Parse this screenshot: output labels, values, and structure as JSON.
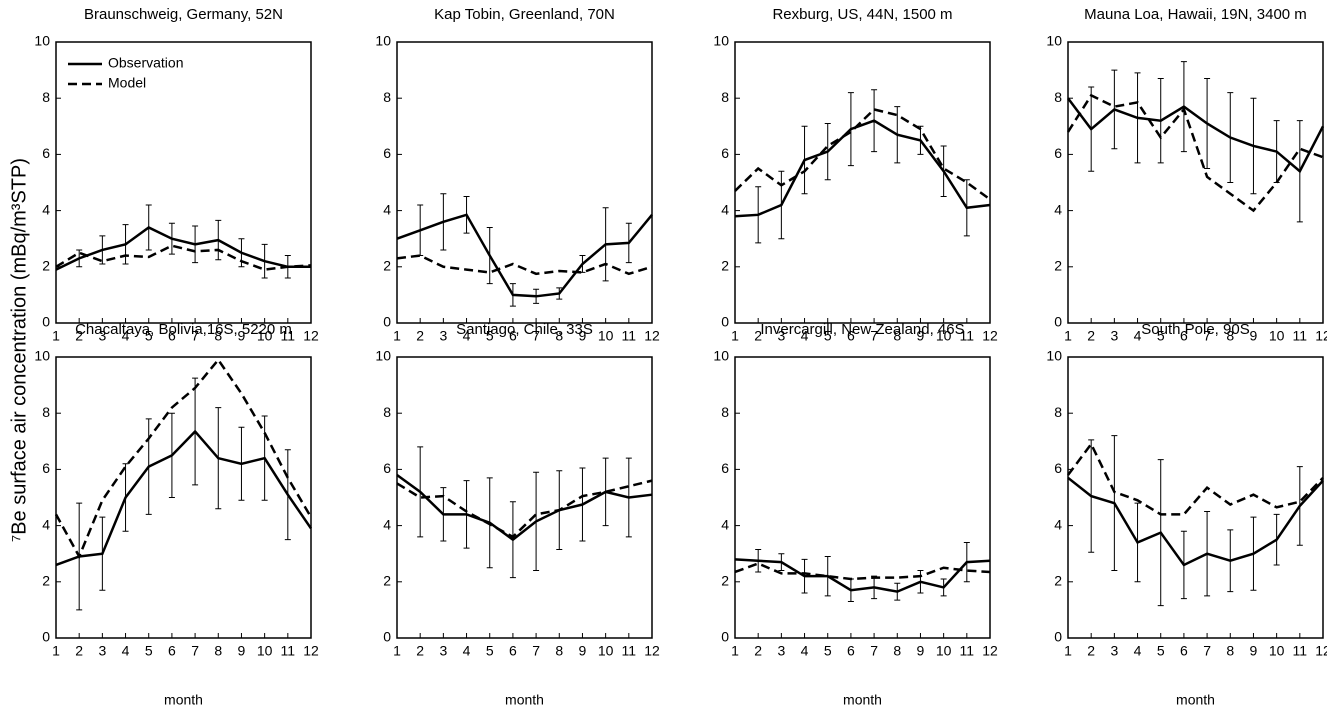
{
  "ylabel": "⁷Be surface air concentration (mBq/m³STP)",
  "chart_data": [
    {
      "type": "line",
      "title": "Braunschweig, Germany, 52N",
      "legend": "upper left",
      "x": [
        1,
        2,
        3,
        4,
        5,
        6,
        7,
        8,
        9,
        10,
        11,
        12
      ],
      "xlim": [
        1,
        12
      ],
      "xticks": [
        1,
        2,
        3,
        4,
        5,
        6,
        7,
        8,
        9,
        10,
        11,
        12
      ],
      "ylim": [
        0,
        10
      ],
      "yticks": [
        0,
        2,
        4,
        6,
        8,
        10
      ],
      "series": [
        {
          "name": "Observation",
          "color": "#000000",
          "line_style": "solid",
          "values": [
            1.9,
            2.3,
            2.6,
            2.8,
            3.4,
            3.0,
            2.8,
            2.95,
            2.5,
            2.2,
            2.0,
            2.0
          ],
          "errors": [
            null,
            0.3,
            0.5,
            0.7,
            0.8,
            0.55,
            0.65,
            0.7,
            0.5,
            0.6,
            0.4,
            null
          ]
        },
        {
          "name": "Model",
          "color": "#000000",
          "line_style": "dashed",
          "values": [
            2.0,
            2.5,
            2.2,
            2.4,
            2.35,
            2.75,
            2.55,
            2.6,
            2.2,
            1.9,
            2.0,
            2.05
          ]
        }
      ]
    },
    {
      "type": "line",
      "title": "Kap Tobin, Greenland, 70N",
      "x": [
        1,
        2,
        3,
        4,
        5,
        6,
        7,
        8,
        9,
        10,
        11,
        12
      ],
      "xlim": [
        1,
        12
      ],
      "xticks": [
        1,
        2,
        3,
        4,
        5,
        6,
        7,
        8,
        9,
        10,
        11,
        12
      ],
      "ylim": [
        0,
        10
      ],
      "yticks": [
        0,
        2,
        4,
        6,
        8,
        10
      ],
      "series": [
        {
          "color": "#000000",
          "line_style": "solid",
          "values": [
            3.0,
            3.3,
            3.6,
            3.85,
            2.4,
            1.0,
            0.95,
            1.05,
            2.1,
            2.8,
            2.85,
            3.85
          ],
          "errors": [
            null,
            0.9,
            1.0,
            0.65,
            1.0,
            0.4,
            0.25,
            0.2,
            0.3,
            1.3,
            0.7,
            null
          ]
        },
        {
          "color": "#000000",
          "line_style": "dashed",
          "values": [
            2.3,
            2.4,
            2.0,
            1.9,
            1.8,
            2.1,
            1.75,
            1.85,
            1.8,
            2.1,
            1.75,
            2.0
          ]
        }
      ]
    },
    {
      "type": "line",
      "title": "Rexburg, US, 44N, 1500 m",
      "x": [
        1,
        2,
        3,
        4,
        5,
        6,
        7,
        8,
        9,
        10,
        11,
        12
      ],
      "xlim": [
        1,
        12
      ],
      "xticks": [
        1,
        2,
        3,
        4,
        5,
        6,
        7,
        8,
        9,
        10,
        11,
        12
      ],
      "ylim": [
        0,
        10
      ],
      "yticks": [
        0,
        2,
        4,
        6,
        8,
        10
      ],
      "series": [
        {
          "color": "#000000",
          "line_style": "solid",
          "values": [
            3.8,
            3.85,
            4.2,
            5.8,
            6.1,
            6.9,
            7.2,
            6.7,
            6.5,
            5.4,
            4.1,
            4.2
          ],
          "errors": [
            null,
            1.0,
            1.2,
            1.2,
            1.0,
            1.3,
            1.1,
            1.0,
            0.5,
            0.9,
            1.0,
            null
          ]
        },
        {
          "color": "#000000",
          "line_style": "dashed",
          "values": [
            4.7,
            5.5,
            4.9,
            5.4,
            6.3,
            6.8,
            7.6,
            7.4,
            6.9,
            5.5,
            5.0,
            4.4
          ]
        }
      ]
    },
    {
      "type": "line",
      "title": "Mauna Loa, Hawaii, 19N, 3400 m",
      "x": [
        1,
        2,
        3,
        4,
        5,
        6,
        7,
        8,
        9,
        10,
        11,
        12
      ],
      "xlim": [
        1,
        12
      ],
      "xticks": [
        1,
        2,
        3,
        4,
        5,
        6,
        7,
        8,
        9,
        10,
        11,
        12
      ],
      "ylim": [
        0,
        10
      ],
      "yticks": [
        0,
        2,
        4,
        6,
        8,
        10
      ],
      "series": [
        {
          "color": "#000000",
          "line_style": "solid",
          "values": [
            8.0,
            6.9,
            7.6,
            7.3,
            7.2,
            7.7,
            7.1,
            6.6,
            6.3,
            6.1,
            5.4,
            7.0
          ],
          "errors": [
            null,
            1.5,
            1.4,
            1.6,
            1.5,
            1.6,
            1.6,
            1.6,
            1.7,
            1.1,
            1.8,
            null
          ]
        },
        {
          "color": "#000000",
          "line_style": "dashed",
          "values": [
            6.8,
            8.1,
            7.7,
            7.85,
            6.6,
            7.6,
            5.2,
            4.6,
            4.0,
            5.0,
            6.2,
            5.9
          ]
        }
      ]
    },
    {
      "type": "line",
      "title": "Chacaltaya, Bolivia,16S, 5220 m",
      "xlabel": "month",
      "x": [
        1,
        2,
        3,
        4,
        5,
        6,
        7,
        8,
        9,
        10,
        11,
        12
      ],
      "xlim": [
        1,
        12
      ],
      "xticks": [
        1,
        2,
        3,
        4,
        5,
        6,
        7,
        8,
        9,
        10,
        11,
        12
      ],
      "ylim": [
        0,
        10
      ],
      "yticks": [
        0,
        2,
        4,
        6,
        8,
        10
      ],
      "series": [
        {
          "color": "#000000",
          "line_style": "solid",
          "values": [
            2.6,
            2.9,
            3.0,
            5.0,
            6.1,
            6.5,
            7.35,
            6.4,
            6.2,
            6.4,
            5.1,
            3.9
          ],
          "errors": [
            null,
            1.9,
            1.3,
            1.2,
            1.7,
            1.5,
            1.9,
            1.8,
            1.3,
            1.5,
            1.6,
            null
          ]
        },
        {
          "color": "#000000",
          "line_style": "dashed",
          "values": [
            4.4,
            2.9,
            4.9,
            6.1,
            7.1,
            8.2,
            8.9,
            9.9,
            8.7,
            7.3,
            5.7,
            4.3
          ]
        }
      ]
    },
    {
      "type": "line",
      "title": "Santiago, Chile, 33S",
      "xlabel": "month",
      "x": [
        1,
        2,
        3,
        4,
        5,
        6,
        7,
        8,
        9,
        10,
        11,
        12
      ],
      "xlim": [
        1,
        12
      ],
      "xticks": [
        1,
        2,
        3,
        4,
        5,
        6,
        7,
        8,
        9,
        10,
        11,
        12
      ],
      "ylim": [
        0,
        10
      ],
      "yticks": [
        0,
        2,
        4,
        6,
        8,
        10
      ],
      "series": [
        {
          "color": "#000000",
          "line_style": "solid",
          "values": [
            5.8,
            5.2,
            4.4,
            4.4,
            4.1,
            3.5,
            4.15,
            4.55,
            4.75,
            5.2,
            5.0,
            5.1
          ],
          "errors": [
            null,
            1.6,
            0.95,
            1.2,
            1.6,
            1.35,
            1.75,
            1.4,
            1.3,
            1.2,
            1.4,
            null
          ]
        },
        {
          "color": "#000000",
          "line_style": "dashed",
          "values": [
            5.5,
            5.0,
            5.05,
            4.5,
            4.05,
            3.6,
            4.4,
            4.55,
            5.05,
            5.2,
            5.4,
            5.6
          ]
        }
      ]
    },
    {
      "type": "line",
      "title": "Invercargill, New Zealand, 46S",
      "xlabel": "month",
      "x": [
        1,
        2,
        3,
        4,
        5,
        6,
        7,
        8,
        9,
        10,
        11,
        12
      ],
      "xlim": [
        1,
        12
      ],
      "xticks": [
        1,
        2,
        3,
        4,
        5,
        6,
        7,
        8,
        9,
        10,
        11,
        12
      ],
      "ylim": [
        0,
        10
      ],
      "yticks": [
        0,
        2,
        4,
        6,
        8,
        10
      ],
      "series": [
        {
          "color": "#000000",
          "line_style": "solid",
          "values": [
            2.8,
            2.75,
            2.7,
            2.2,
            2.2,
            1.7,
            1.8,
            1.65,
            2.0,
            1.8,
            2.7,
            2.75
          ],
          "errors": [
            null,
            0.4,
            0.3,
            0.6,
            0.7,
            0.4,
            0.4,
            0.3,
            0.4,
            0.3,
            0.7,
            null
          ]
        },
        {
          "color": "#000000",
          "line_style": "dashed",
          "values": [
            2.35,
            2.65,
            2.3,
            2.3,
            2.2,
            2.1,
            2.15,
            2.15,
            2.2,
            2.5,
            2.4,
            2.35
          ]
        }
      ]
    },
    {
      "type": "line",
      "title": "South Pole, 90S",
      "xlabel": "month",
      "x": [
        1,
        2,
        3,
        4,
        5,
        6,
        7,
        8,
        9,
        10,
        11,
        12
      ],
      "xlim": [
        1,
        12
      ],
      "xticks": [
        1,
        2,
        3,
        4,
        5,
        6,
        7,
        8,
        9,
        10,
        11,
        12
      ],
      "ylim": [
        0,
        10
      ],
      "yticks": [
        0,
        2,
        4,
        6,
        8,
        10
      ],
      "series": [
        {
          "color": "#000000",
          "line_style": "solid",
          "values": [
            5.7,
            5.05,
            4.8,
            3.4,
            3.75,
            2.6,
            3.0,
            2.75,
            3.0,
            3.5,
            4.7,
            5.6
          ],
          "errors": [
            null,
            2.0,
            2.4,
            1.4,
            2.6,
            1.2,
            1.5,
            1.1,
            1.3,
            0.9,
            1.4,
            null
          ]
        },
        {
          "color": "#000000",
          "line_style": "dashed",
          "values": [
            5.8,
            6.9,
            5.2,
            4.9,
            4.4,
            4.4,
            5.35,
            4.75,
            5.1,
            4.65,
            4.85,
            5.7
          ]
        }
      ]
    }
  ]
}
